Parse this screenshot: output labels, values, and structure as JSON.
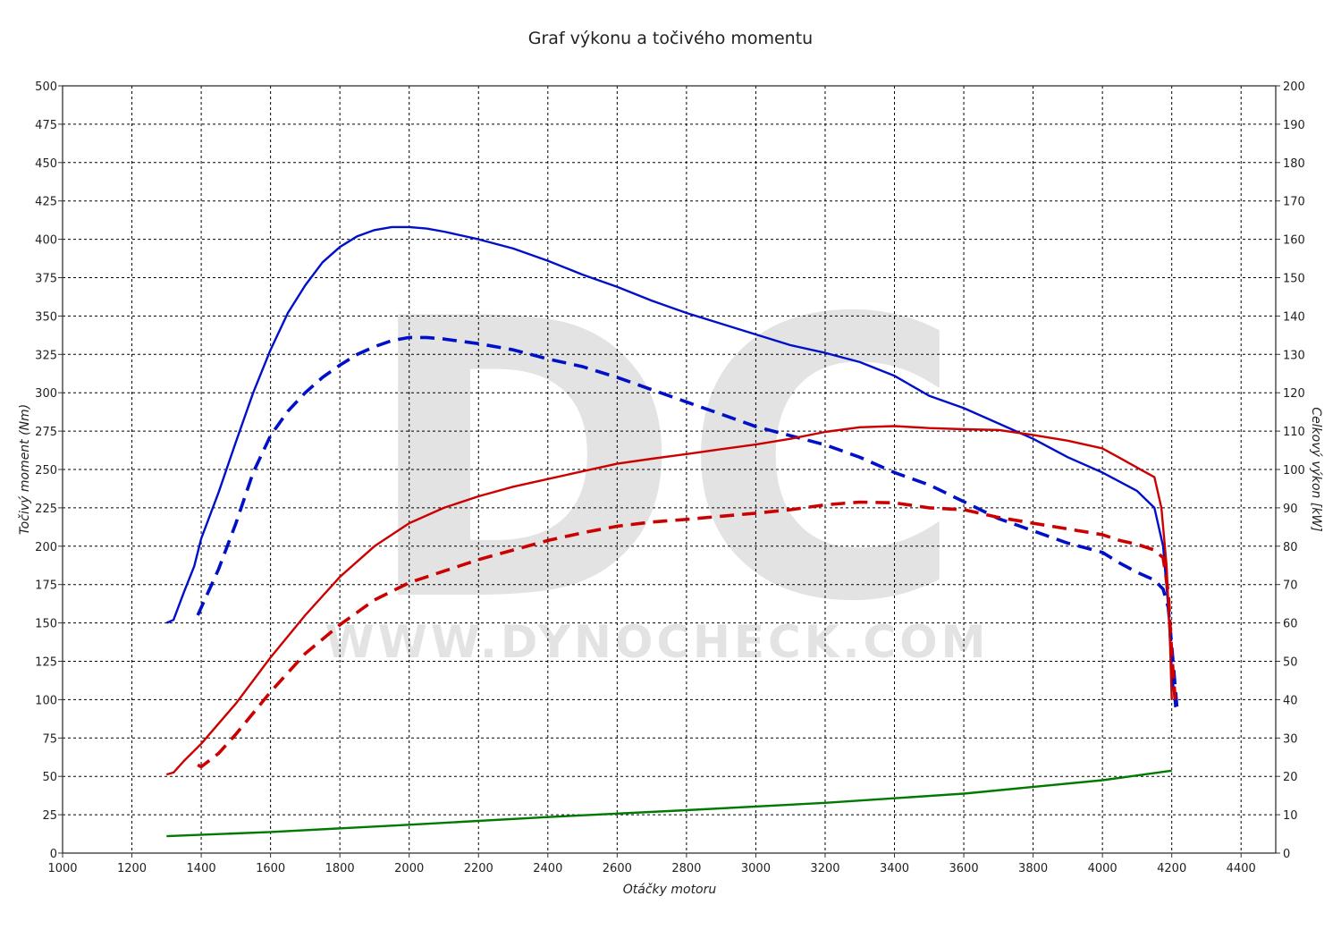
{
  "chart_data": {
    "type": "line",
    "title": "Graf výkonu a točivého momentu",
    "xlabel": "Otáčky motoru",
    "ylabel_left": "Točivý moment (Nm)",
    "ylabel_right": "Celkový výkon [kW]",
    "xlim": [
      1000,
      4500
    ],
    "ylim_left": [
      0,
      500
    ],
    "ylim_right": [
      0,
      200
    ],
    "x_ticks": [
      1000,
      1200,
      1400,
      1600,
      1800,
      2000,
      2200,
      2400,
      2600,
      2800,
      3000,
      3200,
      3400,
      3600,
      3800,
      4000,
      4200,
      4400
    ],
    "y_left_ticks": [
      0,
      25,
      50,
      75,
      100,
      125,
      150,
      175,
      200,
      225,
      250,
      275,
      300,
      325,
      350,
      375,
      400,
      425,
      450,
      475,
      500
    ],
    "y_right_ticks": [
      0,
      10,
      20,
      30,
      40,
      50,
      60,
      70,
      80,
      90,
      100,
      110,
      120,
      130,
      140,
      150,
      160,
      170,
      180,
      190,
      200
    ],
    "grid": true,
    "watermark": {
      "logo": "DC",
      "url": "WWW.DYNOCHECK.COM"
    },
    "series": [
      {
        "key": "torque-tuned",
        "axis": "left",
        "color": "#0010c8",
        "dash": "solid",
        "points": [
          [
            1300,
            150
          ],
          [
            1320,
            152
          ],
          [
            1350,
            170
          ],
          [
            1380,
            187
          ],
          [
            1400,
            205
          ],
          [
            1450,
            235
          ],
          [
            1500,
            268
          ],
          [
            1550,
            300
          ],
          [
            1600,
            328
          ],
          [
            1650,
            352
          ],
          [
            1700,
            370
          ],
          [
            1750,
            385
          ],
          [
            1800,
            395
          ],
          [
            1850,
            402
          ],
          [
            1900,
            406
          ],
          [
            1950,
            408
          ],
          [
            2000,
            408
          ],
          [
            2050,
            407
          ],
          [
            2100,
            405
          ],
          [
            2200,
            400
          ],
          [
            2300,
            394
          ],
          [
            2400,
            386
          ],
          [
            2500,
            377
          ],
          [
            2600,
            369
          ],
          [
            2700,
            360
          ],
          [
            2800,
            352
          ],
          [
            2900,
            345
          ],
          [
            3000,
            338
          ],
          [
            3100,
            331
          ],
          [
            3200,
            326
          ],
          [
            3300,
            320
          ],
          [
            3400,
            311
          ],
          [
            3500,
            298
          ],
          [
            3600,
            290
          ],
          [
            3700,
            280
          ],
          [
            3800,
            270
          ],
          [
            3900,
            258
          ],
          [
            4000,
            248
          ],
          [
            4050,
            242
          ],
          [
            4100,
            236
          ],
          [
            4150,
            225
          ],
          [
            4175,
            200
          ],
          [
            4190,
            160
          ],
          [
            4200,
            120
          ],
          [
            4210,
            95
          ]
        ]
      },
      {
        "key": "torque-stock",
        "axis": "left",
        "color": "#0010c8",
        "dash": "dashed",
        "points": [
          [
            1390,
            155
          ],
          [
            1400,
            160
          ],
          [
            1450,
            185
          ],
          [
            1500,
            215
          ],
          [
            1550,
            248
          ],
          [
            1600,
            272
          ],
          [
            1650,
            288
          ],
          [
            1700,
            300
          ],
          [
            1750,
            310
          ],
          [
            1800,
            318
          ],
          [
            1850,
            325
          ],
          [
            1900,
            330
          ],
          [
            1950,
            334
          ],
          [
            2000,
            336
          ],
          [
            2050,
            336
          ],
          [
            2100,
            335
          ],
          [
            2200,
            332
          ],
          [
            2300,
            328
          ],
          [
            2400,
            322
          ],
          [
            2500,
            317
          ],
          [
            2600,
            310
          ],
          [
            2700,
            302
          ],
          [
            2800,
            294
          ],
          [
            2900,
            286
          ],
          [
            3000,
            278
          ],
          [
            3100,
            272
          ],
          [
            3200,
            266
          ],
          [
            3300,
            258
          ],
          [
            3400,
            248
          ],
          [
            3500,
            240
          ],
          [
            3600,
            229
          ],
          [
            3700,
            218
          ],
          [
            3800,
            210
          ],
          [
            3900,
            202
          ],
          [
            4000,
            196
          ],
          [
            4050,
            189
          ],
          [
            4100,
            183
          ],
          [
            4150,
            178
          ],
          [
            4175,
            172
          ],
          [
            4190,
            160
          ],
          [
            4200,
            135
          ],
          [
            4215,
            95
          ]
        ]
      },
      {
        "key": "power-tuned",
        "axis": "right",
        "color": "#cc0000",
        "dash": "solid",
        "points": [
          [
            1300,
            20.5
          ],
          [
            1320,
            21
          ],
          [
            1350,
            24
          ],
          [
            1400,
            28.5
          ],
          [
            1500,
            39
          ],
          [
            1600,
            51
          ],
          [
            1700,
            62
          ],
          [
            1800,
            72
          ],
          [
            1900,
            80
          ],
          [
            2000,
            86
          ],
          [
            2100,
            90
          ],
          [
            2200,
            93
          ],
          [
            2300,
            95.5
          ],
          [
            2400,
            97.5
          ],
          [
            2500,
            99.5
          ],
          [
            2600,
            101.5
          ],
          [
            2700,
            102.8
          ],
          [
            2800,
            104
          ],
          [
            2900,
            105.3
          ],
          [
            3000,
            106.5
          ],
          [
            3100,
            108
          ],
          [
            3200,
            109.8
          ],
          [
            3300,
            111
          ],
          [
            3400,
            111.3
          ],
          [
            3500,
            110.8
          ],
          [
            3600,
            110.5
          ],
          [
            3700,
            110.3
          ],
          [
            3800,
            109
          ],
          [
            3900,
            107.5
          ],
          [
            4000,
            105.5
          ],
          [
            4050,
            103
          ],
          [
            4100,
            100.5
          ],
          [
            4150,
            98
          ],
          [
            4170,
            90
          ],
          [
            4185,
            75
          ],
          [
            4195,
            55
          ],
          [
            4200,
            40
          ]
        ]
      },
      {
        "key": "power-stock",
        "axis": "right",
        "color": "#cc0000",
        "dash": "dashed",
        "points": [
          [
            1390,
            23
          ],
          [
            1400,
            22.5
          ],
          [
            1450,
            26
          ],
          [
            1500,
            31
          ],
          [
            1600,
            42
          ],
          [
            1700,
            52
          ],
          [
            1800,
            59.5
          ],
          [
            1900,
            66
          ],
          [
            2000,
            70.5
          ],
          [
            2100,
            73.5
          ],
          [
            2200,
            76.5
          ],
          [
            2300,
            79
          ],
          [
            2400,
            81.5
          ],
          [
            2500,
            83.5
          ],
          [
            2600,
            85.2
          ],
          [
            2700,
            86.3
          ],
          [
            2800,
            87
          ],
          [
            2900,
            87.8
          ],
          [
            3000,
            88.6
          ],
          [
            3100,
            89.5
          ],
          [
            3200,
            90.8
          ],
          [
            3300,
            91.5
          ],
          [
            3400,
            91.3
          ],
          [
            3500,
            90
          ],
          [
            3600,
            89.5
          ],
          [
            3700,
            87.5
          ],
          [
            3800,
            86
          ],
          [
            3900,
            84.5
          ],
          [
            4000,
            83
          ],
          [
            4050,
            81.5
          ],
          [
            4100,
            80.5
          ],
          [
            4150,
            79
          ],
          [
            4175,
            77
          ],
          [
            4190,
            68
          ],
          [
            4200,
            52
          ],
          [
            4210,
            40
          ]
        ]
      },
      {
        "key": "loss-power",
        "axis": "right",
        "color": "#007a00",
        "dash": "solid",
        "points": [
          [
            1300,
            4.4
          ],
          [
            1600,
            5.5
          ],
          [
            2000,
            7.4
          ],
          [
            2400,
            9.4
          ],
          [
            2800,
            11.2
          ],
          [
            3200,
            13.1
          ],
          [
            3600,
            15.5
          ],
          [
            4000,
            19
          ],
          [
            4200,
            21.5
          ]
        ]
      }
    ]
  }
}
